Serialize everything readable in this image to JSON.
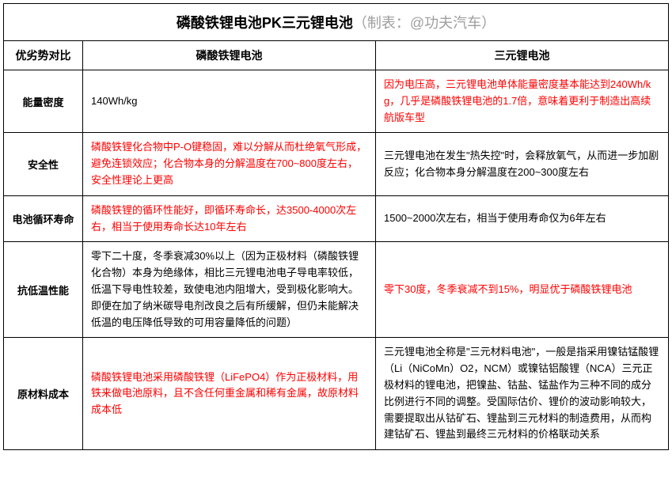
{
  "title": {
    "main": "磷酸铁锂电池PK三元锂电池",
    "credit": "（制表：@功夫汽车）"
  },
  "headers": {
    "col0": "优劣势对比",
    "col1": "磷酸铁锂电池",
    "col2": "三元锂电池"
  },
  "rows": [
    {
      "label": "能量密度",
      "lfp": "140Wh/kg",
      "lfp_color": "black",
      "ncm": "因为电压高，三元锂电池单体能量密度基本能达到240Wh/kg，几乎是磷酸铁锂电池的1.7倍，意味着更利于制造出高续航版车型",
      "ncm_color": "red"
    },
    {
      "label": "安全性",
      "lfp": "磷酸铁锂化合物中P-O键稳固，难以分解从而杜绝氧气形成，避免连锁效应；化合物本身的分解温度在700~800度左右，安全性理论上更高",
      "lfp_color": "red",
      "ncm": "三元锂电池在发生\"热失控\"时，会释放氧气，从而进一步加剧反应；化合物本身分解温度在200~300度左右",
      "ncm_color": "black"
    },
    {
      "label": "电池循环寿命",
      "lfp": "磷酸铁锂的循环性能好，即循环寿命长，达3500-4000次左右，相当于使用寿命长达10年左右",
      "lfp_color": "red",
      "ncm": "1500~2000次左右，相当于使用寿命仅为6年左右",
      "ncm_color": "black"
    },
    {
      "label": "抗低温性能",
      "lfp": "零下二十度，冬季衰减30%以上（因为正极材料（磷酸铁锂化合物）本身为绝缘体，相比三元锂电池电子导电率较低，低温下导电性较差，致使电池内阻增大，受到极化影响大。即便在加了纳米碳导电剂改良之后有所缓解，但仍未能解决低温的电压降低导致的可用容量降低的问题）",
      "lfp_color": "black",
      "ncm": "零下30度，冬季衰减不到15%，明显优于磷酸铁锂电池",
      "ncm_color": "red"
    },
    {
      "label": "原材料成本",
      "lfp": "磷酸铁锂电池采用磷酸铁锂（LiFePO4）作为正极材料，用铁来做电池原料，且不含任何重金属和稀有金属，故原材料成本低",
      "lfp_color": "red",
      "ncm": "三元锂电池全称是\"三元材料电池\"，一般是指采用镍钴锰酸锂（Li（NiCoMn）O2，NCM）或镍钴铝酸锂（NCA）三元正极材料的锂电池，把镍盐、钴盐、锰盐作为三种不同的成分比例进行不同的调整。受国际估价、锂价的波动影响较大，需要提取出从钴矿石、锂盐到三元材料的制造费用，从而构建钴矿石、锂盐到最终三元材料的价格联动关系",
      "ncm_color": "black"
    }
  ]
}
